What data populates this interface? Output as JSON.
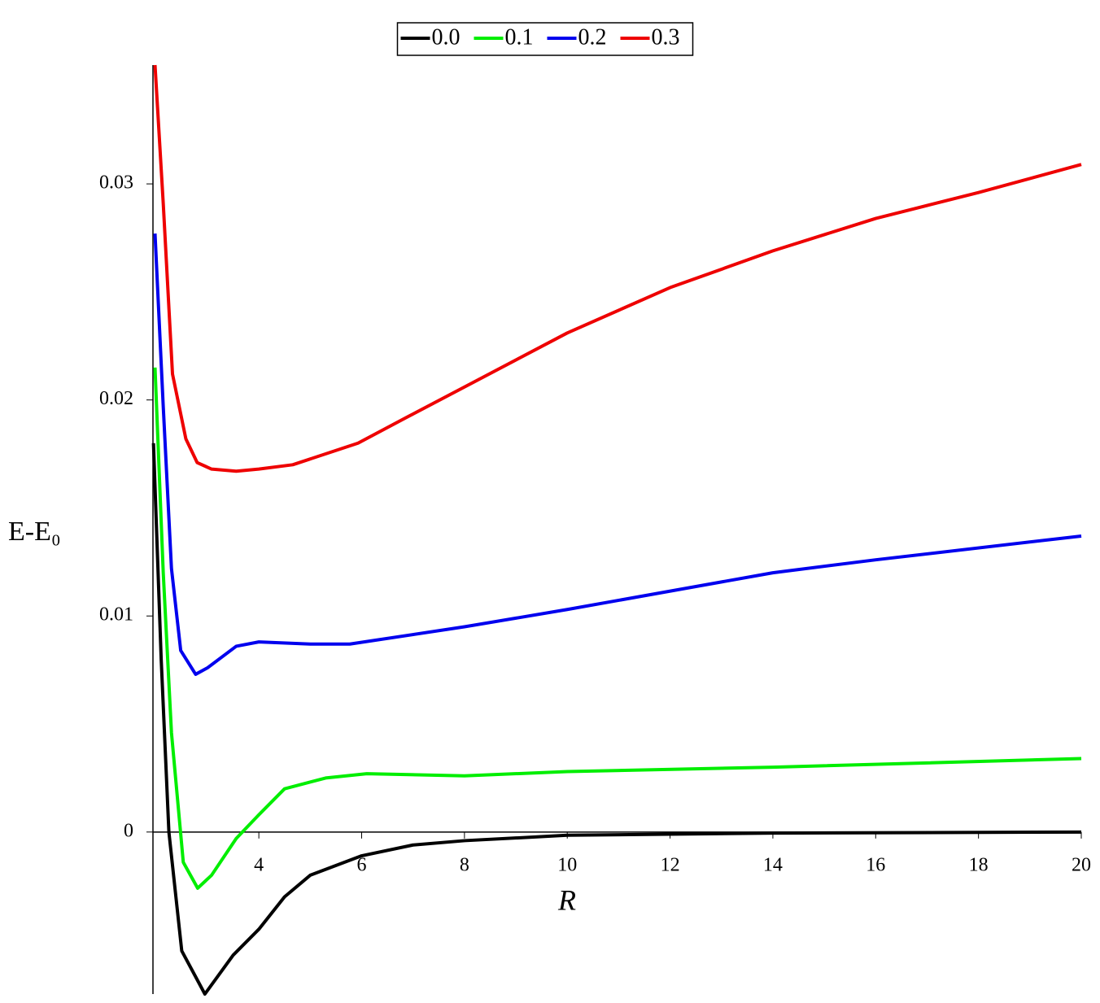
{
  "chart_data": {
    "type": "line",
    "xlabel": "R",
    "ylabel": "E-E₀",
    "legend": "top",
    "xlim": [
      1.94,
      20
    ],
    "ylim": [
      -0.0075,
      0.0355
    ],
    "xticks": [
      4,
      6,
      8,
      10,
      12,
      14,
      16,
      18,
      20
    ],
    "yticks": [
      0,
      0.01,
      0.02,
      0.03
    ],
    "series": [
      {
        "name": "0.0",
        "color": "#000000",
        "x": [
          1.95,
          2.1,
          2.25,
          2.5,
          2.95,
          3.5,
          4,
          4.5,
          5,
          6,
          7,
          8,
          10,
          14,
          20
        ],
        "values": [
          0.018,
          0.008,
          0.0,
          -0.0055,
          -0.0075,
          -0.0057,
          -0.0045,
          -0.003,
          -0.002,
          -0.0011,
          -0.0006,
          -0.0004,
          -0.00015,
          -5e-05,
          0
        ]
      },
      {
        "name": "0.1",
        "color": "#00ee00",
        "x": [
          1.98,
          2.14,
          2.3,
          2.53,
          2.81,
          3.08,
          3.56,
          4,
          4.5,
          5.3,
          6.1,
          8,
          10,
          14,
          20
        ],
        "values": [
          0.0215,
          0.012,
          0.0046,
          -0.0014,
          -0.0026,
          -0.002,
          -0.0003,
          0.0008,
          0.002,
          0.0025,
          0.0027,
          0.0026,
          0.0028,
          0.003,
          0.0034
        ]
      },
      {
        "name": "0.2",
        "color": "#0000ee",
        "x": [
          1.98,
          2.14,
          2.3,
          2.48,
          2.77,
          3.0,
          3.56,
          4,
          5,
          5.77,
          8,
          10,
          14,
          16,
          20
        ],
        "values": [
          0.0277,
          0.0197,
          0.0122,
          0.0084,
          0.0073,
          0.0076,
          0.0086,
          0.0088,
          0.0087,
          0.0087,
          0.0095,
          0.0103,
          0.012,
          0.0126,
          0.0137
        ]
      },
      {
        "name": "0.3",
        "color": "#ee0000",
        "x": [
          1.98,
          2.14,
          2.32,
          2.58,
          2.8,
          3.08,
          3.56,
          4,
          4.66,
          5.93,
          6.88,
          8,
          10,
          12,
          14,
          16,
          18,
          20
        ],
        "values": [
          0.0355,
          0.0291,
          0.0212,
          0.0182,
          0.0171,
          0.0168,
          0.0167,
          0.0168,
          0.017,
          0.018,
          0.0192,
          0.0206,
          0.0231,
          0.0252,
          0.0269,
          0.0284,
          0.0296,
          0.0309
        ]
      }
    ]
  }
}
